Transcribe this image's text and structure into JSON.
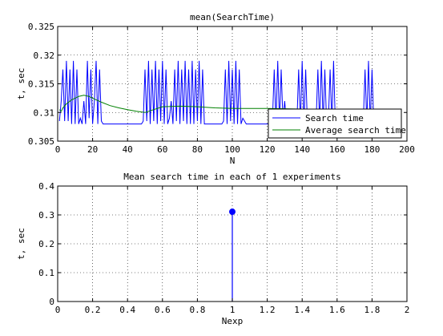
{
  "chart_data": [
    {
      "type": "line",
      "title": "mean(SearchTime)",
      "xlabel": "N",
      "ylabel": "t, sec",
      "xlim": [
        0,
        200
      ],
      "ylim": [
        0.305,
        0.325
      ],
      "x_ticks": [
        0,
        20,
        40,
        60,
        80,
        100,
        120,
        140,
        160,
        180,
        200
      ],
      "x_tick_labels": [
        "0",
        "20",
        "40",
        "60",
        "80",
        "100",
        "120",
        "140",
        "160",
        "180",
        "200"
      ],
      "y_ticks": [
        0.305,
        0.31,
        0.315,
        0.32,
        0.325
      ],
      "y_tick_labels": [
        "0.305",
        "0.31",
        "0.315",
        "0.32",
        "0.325"
      ],
      "grid": true,
      "legend": "bottom-right",
      "series": [
        {
          "name": "Search time",
          "color": "#0000ff",
          "x": [
            1,
            2,
            3,
            4,
            5,
            6,
            7,
            8,
            9,
            10,
            11,
            12,
            13,
            14,
            15,
            16,
            17,
            18,
            19,
            20,
            21,
            22,
            23,
            24,
            25,
            26,
            27,
            28,
            29,
            30,
            31,
            32,
            33,
            34,
            35,
            36,
            37,
            38,
            39,
            40,
            41,
            42,
            43,
            44,
            45,
            46,
            47,
            48,
            49,
            50,
            51,
            52,
            53,
            54,
            55,
            56,
            57,
            58,
            59,
            60,
            61,
            62,
            63,
            64,
            65,
            66,
            67,
            68,
            69,
            70,
            71,
            72,
            73,
            74,
            75,
            76,
            77,
            78,
            79,
            80,
            81,
            82,
            83,
            84,
            85,
            86,
            87,
            88,
            89,
            90,
            91,
            92,
            93,
            94,
            95,
            96,
            97,
            98,
            99,
            100,
            101,
            102,
            103,
            104,
            105,
            106,
            107,
            108,
            109,
            110,
            111,
            112,
            113,
            114,
            115,
            116,
            117,
            118,
            119,
            120,
            121,
            122,
            123,
            124,
            125,
            126,
            127,
            128,
            129,
            130,
            131,
            132,
            133,
            134,
            135,
            136,
            137,
            138,
            139,
            140,
            141,
            142,
            143,
            144,
            145,
            146,
            147,
            148,
            149,
            150,
            151,
            152,
            153,
            154,
            155,
            156,
            157,
            158,
            159,
            160,
            161,
            162,
            163,
            164,
            165,
            166,
            167,
            168,
            169,
            170,
            171,
            172,
            173,
            174,
            175,
            176,
            177,
            178,
            179,
            180,
            181,
            182,
            183,
            184,
            185,
            186,
            187,
            188,
            189,
            190
          ],
          "y": [
            0.3085,
            0.312,
            0.3175,
            0.3085,
            0.319,
            0.3085,
            0.3175,
            0.308,
            0.319,
            0.308,
            0.3175,
            0.308,
            0.309,
            0.308,
            0.312,
            0.308,
            0.319,
            0.309,
            0.3175,
            0.308,
            0.312,
            0.319,
            0.308,
            0.3175,
            0.3085,
            0.308,
            0.308,
            0.308,
            0.308,
            0.308,
            0.308,
            0.308,
            0.308,
            0.308,
            0.308,
            0.308,
            0.308,
            0.308,
            0.308,
            0.308,
            0.308,
            0.308,
            0.308,
            0.308,
            0.308,
            0.308,
            0.308,
            0.308,
            0.3085,
            0.3175,
            0.3085,
            0.319,
            0.308,
            0.3175,
            0.3085,
            0.319,
            0.308,
            0.3175,
            0.3085,
            0.319,
            0.308,
            0.3175,
            0.308,
            0.309,
            0.312,
            0.308,
            0.3175,
            0.3085,
            0.319,
            0.308,
            0.3175,
            0.3085,
            0.319,
            0.308,
            0.3175,
            0.308,
            0.319,
            0.308,
            0.3175,
            0.3085,
            0.319,
            0.308,
            0.3175,
            0.308,
            0.308,
            0.308,
            0.308,
            0.308,
            0.308,
            0.308,
            0.308,
            0.308,
            0.308,
            0.308,
            0.3085,
            0.3175,
            0.308,
            0.319,
            0.3085,
            0.3175,
            0.308,
            0.319,
            0.308,
            0.3175,
            0.308,
            0.309,
            0.3085,
            0.308,
            0.308,
            0.308,
            0.308,
            0.308,
            0.308,
            0.308,
            0.308,
            0.308,
            0.308,
            0.308,
            0.308,
            0.308,
            0.308,
            0.308,
            0.3085,
            0.3175,
            0.308,
            0.319,
            0.308,
            0.3175,
            0.3085,
            0.312,
            0.308,
            0.308,
            0.308,
            0.308,
            0.308,
            0.308,
            0.3085,
            0.3175,
            0.308,
            0.319,
            0.308,
            0.3175,
            0.308,
            0.308,
            0.308,
            0.308,
            0.308,
            0.3085,
            0.3175,
            0.308,
            0.319,
            0.308,
            0.3175,
            0.308,
            0.3085,
            0.3175,
            0.308,
            0.319,
            0.308,
            0.308,
            0.308,
            0.308,
            0.308,
            0.308,
            0.308,
            0.308,
            0.308,
            0.308,
            0.308,
            0.308,
            0.308,
            0.308,
            0.308,
            0.308,
            0.3085,
            0.3175,
            0.308,
            0.319,
            0.308,
            0.3175,
            0.308,
            0.308,
            0.308,
            0.308,
            0.308,
            0.308,
            0.308,
            0.308,
            0.308,
            0.308
          ]
        },
        {
          "name": "Average search time",
          "color": "#008000",
          "x": [
            1,
            2,
            3,
            5,
            8,
            10,
            12,
            15,
            18,
            20,
            25,
            30,
            35,
            40,
            45,
            50,
            55,
            60,
            70,
            80,
            90,
            100,
            120,
            140,
            160,
            180,
            190
          ],
          "y": [
            0.3105,
            0.3102,
            0.3108,
            0.3115,
            0.3122,
            0.3125,
            0.3128,
            0.313,
            0.3128,
            0.3125,
            0.3118,
            0.3112,
            0.3108,
            0.3105,
            0.3102,
            0.31,
            0.3105,
            0.311,
            0.3111,
            0.311,
            0.3108,
            0.3107,
            0.3107,
            0.3106,
            0.3106,
            0.3105,
            0.3105
          ]
        }
      ]
    },
    {
      "type": "scatter",
      "title": "Mean search time in each of 1 experiments",
      "xlabel": "Nexp",
      "ylabel": "t, sec",
      "xlim": [
        0,
        2
      ],
      "ylim": [
        0,
        0.4
      ],
      "x_ticks": [
        0,
        0.2,
        0.4,
        0.6,
        0.8,
        1,
        1.2,
        1.4,
        1.6,
        1.8,
        2
      ],
      "x_tick_labels": [
        "0",
        "0.2",
        "0.4",
        "0.6",
        "0.8",
        "1",
        "1.2",
        "1.4",
        "1.6",
        "1.8",
        "2"
      ],
      "y_ticks": [
        0,
        0.1,
        0.2,
        0.3,
        0.4
      ],
      "y_tick_labels": [
        "0",
        "0.1",
        "0.2",
        "0.3",
        "0.4"
      ],
      "grid": true,
      "series": [
        {
          "color": "#0000ff",
          "x": [
            1
          ],
          "y": [
            0.311
          ]
        }
      ]
    }
  ]
}
